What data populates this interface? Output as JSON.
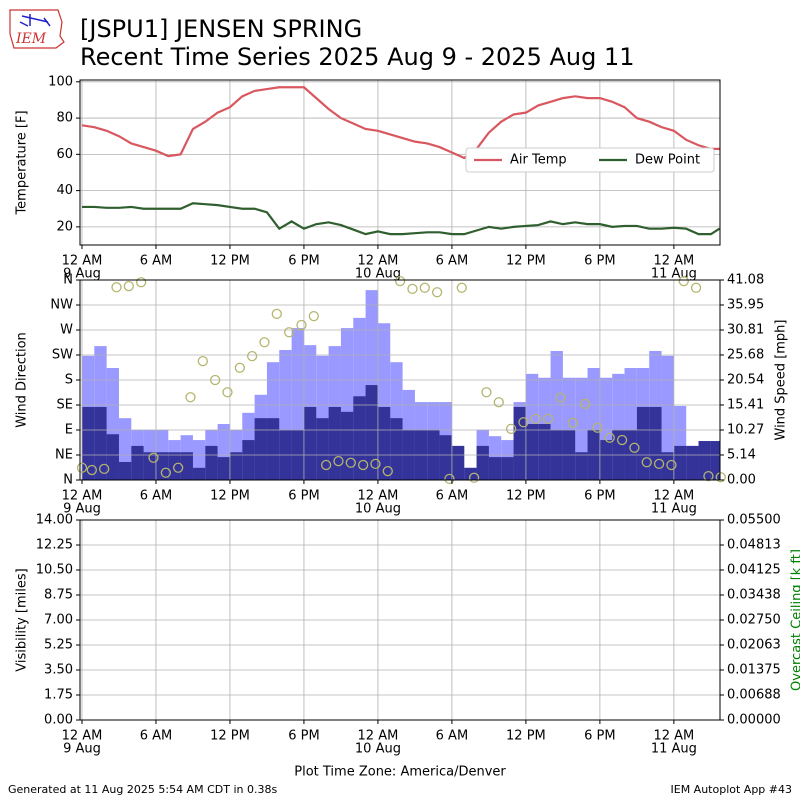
{
  "header": {
    "logo": "IEM",
    "title": [
      "[JSPU1] JENSEN SPRING",
      "Recent Time Series 2025 Aug 9 - 2025 Aug 11"
    ]
  },
  "footer": {
    "left": "Generated at 11 Aug 2025 5:54 AM CDT in 0.38s",
    "right": "IEM Autoplot App #43"
  },
  "chart_data": [
    {
      "type": "line",
      "ylabel": "Temperature [F]",
      "x": [
        0,
        1,
        2,
        3,
        4,
        5,
        6,
        7,
        8,
        9,
        10,
        11,
        12,
        13,
        14,
        15,
        16,
        17,
        18,
        19,
        20,
        21,
        22,
        23,
        24,
        25,
        26,
        27,
        28,
        29,
        30,
        31,
        32,
        33,
        34,
        35,
        36,
        37,
        38,
        39,
        40,
        41,
        42,
        43,
        44,
        45,
        46,
        47,
        48,
        49,
        50,
        51,
        51.7
      ],
      "series": [
        {
          "name": "Air Temp",
          "color": "#d9575f",
          "values": [
            76,
            75,
            73,
            70,
            66,
            64,
            62,
            59,
            60,
            74,
            78,
            83,
            86,
            92,
            95,
            96,
            97,
            97,
            97,
            91,
            85,
            80,
            77,
            74,
            73,
            71,
            69,
            67,
            66,
            64,
            61,
            58,
            63,
            72,
            78,
            82,
            83,
            87,
            89,
            91,
            92,
            91,
            91,
            89,
            86,
            80,
            78,
            75,
            73,
            68,
            65,
            63,
            63
          ]
        },
        {
          "name": "Dew Point",
          "color": "#2f5f2f",
          "values": [
            31,
            31,
            30.5,
            30.5,
            31,
            30,
            30,
            30,
            30,
            33,
            32.5,
            32,
            31,
            30,
            30,
            28,
            19,
            23,
            19,
            21.5,
            22.5,
            21,
            18.5,
            16,
            17.5,
            16,
            16,
            16.5,
            17,
            17,
            16,
            16,
            18,
            20,
            19,
            20,
            20.5,
            21,
            23,
            21.5,
            22.5,
            21.5,
            21.5,
            20,
            20.5,
            20.5,
            19,
            19,
            19.5,
            19,
            16,
            16,
            19
          ]
        }
      ],
      "xlim": [
        -0.16,
        51.74
      ],
      "xticks": [
        {
          "value": 0,
          "label": "12 AM",
          "date": "9 Aug"
        },
        {
          "value": 6,
          "label": "6 AM"
        },
        {
          "value": 12,
          "label": "12 PM"
        },
        {
          "value": 18,
          "label": "6 PM"
        },
        {
          "value": 24,
          "label": "12 AM",
          "date": "10 Aug"
        },
        {
          "value": 30,
          "label": "6 AM"
        },
        {
          "value": 36,
          "label": "12 PM"
        },
        {
          "value": 42,
          "label": "6 PM"
        },
        {
          "value": 48,
          "label": "12 AM",
          "date": "11 Aug"
        }
      ],
      "ylim": [
        10,
        101
      ],
      "yticks": [
        20,
        40,
        60,
        80,
        100
      ],
      "grid": true,
      "legend": "center right"
    },
    {
      "type": "wind",
      "ylabel": "Wind Direction",
      "y2label": "Wind Speed [mph]",
      "x": [
        0,
        1,
        2,
        3,
        4,
        5,
        6,
        7,
        8,
        9,
        10,
        11,
        12,
        13,
        14,
        15,
        16,
        17,
        18,
        19,
        20,
        21,
        22,
        23,
        24,
        25,
        26,
        27,
        28,
        29,
        30,
        31,
        32,
        33,
        34,
        35,
        36,
        37,
        38,
        39,
        40,
        41,
        42,
        43,
        44,
        45,
        46,
        47,
        48,
        49,
        50,
        51
      ],
      "bars": [
        {
          "color": "#9999ff",
          "axis": "y2",
          "values": [
            25.5,
            27.5,
            23,
            12.7,
            10.3,
            10.3,
            10.3,
            8.2,
            9.2,
            8.2,
            10.3,
            11.5,
            10.3,
            13.8,
            17.5,
            24.2,
            26.7,
            31.2,
            27.7,
            25.5,
            27.5,
            31.2,
            33.3,
            39,
            32.2,
            24.2,
            18.5,
            16,
            16,
            16,
            7,
            2.5,
            10.3,
            9,
            8.2,
            16,
            21.8,
            21,
            26.5,
            21,
            21,
            23,
            21,
            21.8,
            23,
            23,
            26.5,
            25.5,
            15.2,
            7,
            8,
            8
          ]
        },
        {
          "color": "#333399",
          "axis": "y2",
          "values": [
            15,
            15,
            9.4,
            3.7,
            7,
            5.7,
            5.7,
            5.7,
            5.7,
            2.5,
            7,
            4.7,
            5.7,
            8.2,
            12.7,
            12.7,
            10.3,
            10.3,
            15,
            12.7,
            15,
            14,
            17.2,
            19.5,
            15,
            12.7,
            10.3,
            10.3,
            10.3,
            9.2,
            7,
            2.5,
            7,
            4.7,
            4.7,
            15,
            11.5,
            11.5,
            10.3,
            10.3,
            5.7,
            10.3,
            8.2,
            10.3,
            10.3,
            15,
            15,
            5.7,
            7,
            7,
            8,
            8
          ]
        }
      ],
      "direction": {
        "color": "#b5b56e",
        "x": [
          0,
          0.8,
          1.8,
          2.8,
          3.8,
          4.8,
          5.8,
          6.8,
          7.8,
          8.8,
          9.8,
          10.8,
          11.8,
          12.8,
          13.8,
          14.8,
          15.8,
          16.8,
          17.8,
          18.8,
          19.8,
          20.8,
          21.8,
          22.8,
          23.8,
          24.8,
          25.8,
          26.8,
          27.8,
          28.8,
          29.8,
          30.8,
          31.8,
          32.8,
          33.8,
          34.8,
          35.8,
          36.8,
          37.8,
          38.8,
          39.8,
          40.8,
          41.8,
          42.8,
          43.8,
          44.8,
          45.8,
          46.8,
          47.8,
          48.8,
          49.8,
          50.8,
          51.8
        ],
        "values": [
          22,
          18,
          20,
          347,
          349,
          356,
          40,
          13,
          22,
          149,
          214,
          180,
          158,
          202,
          223,
          248,
          299,
          266,
          279,
          295,
          27,
          34,
          31,
          27,
          29,
          16,
          358,
          344,
          346,
          338,
          2,
          346,
          4,
          158,
          140,
          92,
          104,
          110,
          110,
          148,
          103,
          137,
          94,
          76,
          72,
          58,
          32,
          29,
          27,
          358,
          346,
          7,
          5
        ]
      },
      "xlim": [
        -0.16,
        51.74
      ],
      "xticks": [
        {
          "value": 0,
          "label": "12 AM",
          "date": "9 Aug"
        },
        {
          "value": 6,
          "label": "6 AM"
        },
        {
          "value": 12,
          "label": "12 PM"
        },
        {
          "value": 18,
          "label": "6 PM"
        },
        {
          "value": 24,
          "label": "12 AM",
          "date": "10 Aug"
        },
        {
          "value": 30,
          "label": "6 AM"
        },
        {
          "value": 36,
          "label": "12 PM"
        },
        {
          "value": 42,
          "label": "6 PM"
        },
        {
          "value": 48,
          "label": "12 AM",
          "date": "11 Aug"
        }
      ],
      "ylim": [
        0,
        360
      ],
      "yticks": [
        {
          "value": 0,
          "label": "N"
        },
        {
          "value": 45,
          "label": "NE"
        },
        {
          "value": 90,
          "label": "E"
        },
        {
          "value": 135,
          "label": "SE"
        },
        {
          "value": 180,
          "label": "S"
        },
        {
          "value": 225,
          "label": "SW"
        },
        {
          "value": 270,
          "label": "W"
        },
        {
          "value": 315,
          "label": "NW"
        },
        {
          "value": 360,
          "label": "N"
        }
      ],
      "y2lim": [
        0,
        41.08
      ],
      "y2ticks": [
        {
          "value": 0,
          "label": "0.00"
        },
        5.14,
        10.27,
        15.41,
        20.54,
        25.68,
        30.81,
        35.95,
        41.08
      ],
      "grid": true
    },
    {
      "type": "empty",
      "ylabel": "Visibility [miles]",
      "y2label": "Overcast Ceiling [k ft]",
      "y2label_color": "#008000",
      "xlabel": "Plot Time Zone: America/Denver",
      "xlim": [
        -0.16,
        51.74
      ],
      "xticks": [
        {
          "value": 0,
          "label": "12 AM",
          "date": "9 Aug"
        },
        {
          "value": 6,
          "label": "6 AM"
        },
        {
          "value": 12,
          "label": "12 PM"
        },
        {
          "value": 18,
          "label": "6 PM"
        },
        {
          "value": 24,
          "label": "12 AM",
          "date": "10 Aug"
        },
        {
          "value": 30,
          "label": "6 AM"
        },
        {
          "value": 36,
          "label": "12 PM"
        },
        {
          "value": 42,
          "label": "6 PM"
        },
        {
          "value": 48,
          "label": "12 AM",
          "date": "11 Aug"
        }
      ],
      "ylim": [
        0,
        14
      ],
      "yticks": [
        {
          "value": 0,
          "label": "0.00"
        },
        1.75,
        {
          "value": 3.5,
          "label": "3.50"
        },
        5.25,
        {
          "value": 7,
          "label": "7.00"
        },
        8.75,
        {
          "value": 10.5,
          "label": "10.50"
        },
        12.25,
        {
          "value": 14,
          "label": "14.00"
        }
      ],
      "y2lim": [
        0,
        0.055
      ],
      "y2ticks": [
        {
          "value": 0,
          "label": "0.00000"
        },
        {
          "value": 0.006875,
          "label": "0.00688"
        },
        {
          "value": 0.01375,
          "label": "0.01375"
        },
        {
          "value": 0.020625,
          "label": "0.02063"
        },
        {
          "value": 0.0275,
          "label": "0.02750"
        },
        {
          "value": 0.034375,
          "label": "0.03438"
        },
        {
          "value": 0.04125,
          "label": "0.04125"
        },
        {
          "value": 0.048125,
          "label": "0.04813"
        },
        {
          "value": 0.055,
          "label": "0.05500"
        }
      ],
      "grid": true
    }
  ]
}
